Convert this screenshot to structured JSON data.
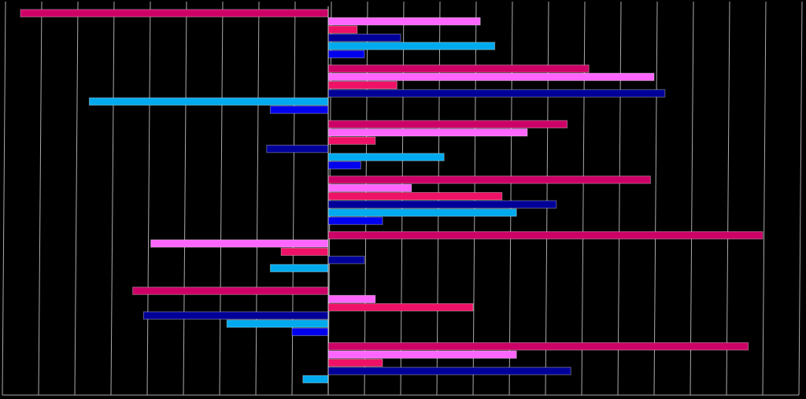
{
  "chart_data": {
    "type": "hbar",
    "categories": [
      null,
      null,
      null,
      null,
      null,
      null,
      null
    ],
    "series": [
      {
        "color": "#cc0066",
        "values": [
          -8.5,
          7.2,
          6.6,
          8.9,
          12.0,
          -5.4,
          11.6
        ]
      },
      {
        "color": "#ff66ff",
        "values": [
          4.2,
          9.0,
          5.5,
          2.3,
          -4.9,
          1.3,
          5.2
        ]
      },
      {
        "color": "#ee1166",
        "values": [
          0.8,
          1.9,
          1.3,
          4.8,
          -1.3,
          4.0,
          1.5
        ]
      },
      {
        "color": "#000099",
        "values": [
          2.0,
          9.3,
          -1.7,
          6.3,
          1.0,
          -5.1,
          6.7
        ]
      },
      {
        "color": "#00aaee",
        "values": [
          4.6,
          -6.6,
          3.2,
          5.2,
          -1.6,
          -2.8,
          -0.7
        ]
      },
      {
        "color": "#0000ee",
        "values": [
          1.0,
          -1.6,
          0.9,
          1.5,
          0,
          -1.0,
          0
        ]
      }
    ],
    "xlim": [
      -9,
      13
    ],
    "xticks": [
      -9,
      -8,
      -7,
      -6,
      -5,
      -4,
      -3,
      -2,
      -1,
      0,
      1,
      2,
      3,
      4,
      5,
      6,
      7,
      8,
      9,
      10,
      11,
      12,
      13
    ],
    "grid": true
  }
}
